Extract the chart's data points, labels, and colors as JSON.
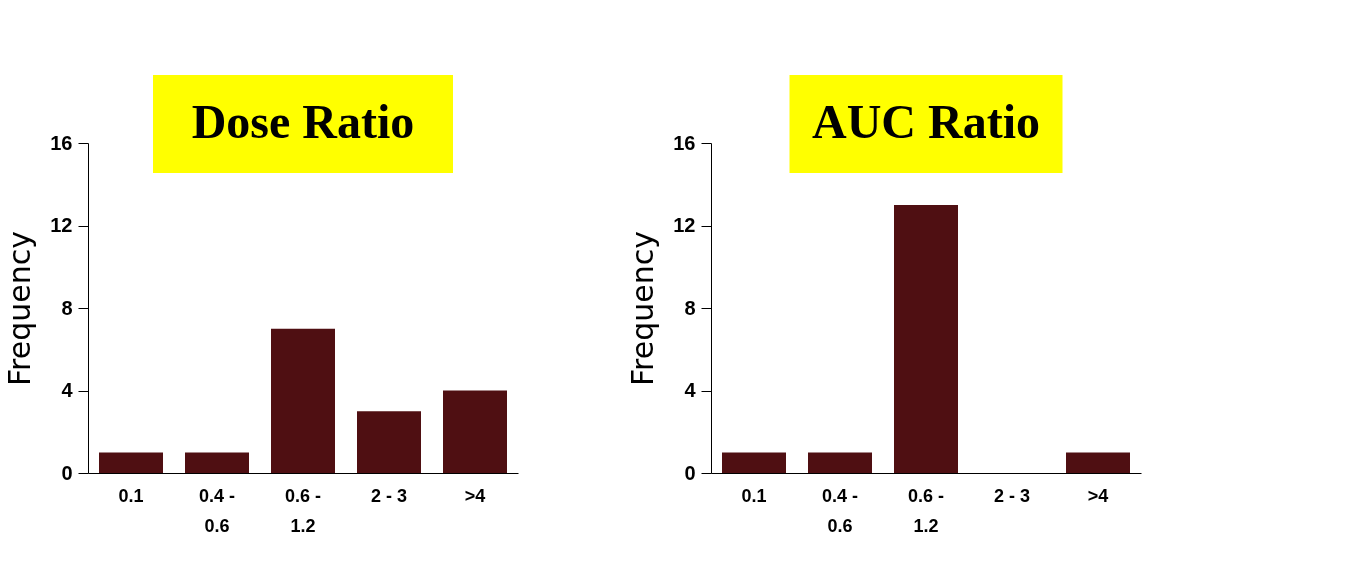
{
  "chart_data": [
    {
      "type": "bar",
      "title": "Dose Ratio",
      "ylabel": "Frequency",
      "categories": [
        "0.1",
        "0.4 - 0.6",
        "0.6 - 1.2",
        "2 - 3",
        ">4"
      ],
      "values": [
        1,
        1,
        7,
        3,
        4
      ],
      "color": "#4f0f12",
      "ylim": [
        0,
        16
      ],
      "yticks": [
        0,
        4,
        8,
        12,
        16
      ],
      "grid": false
    },
    {
      "type": "bar",
      "title": "AUC Ratio",
      "ylabel": "Frequency",
      "categories": [
        "0.1",
        "0.4 - 0.6",
        "0.6 - 1.2",
        "2 - 3",
        ">4"
      ],
      "values": [
        1,
        1,
        13,
        0,
        1
      ],
      "color": "#4f0f12",
      "ylim": [
        0,
        16
      ],
      "yticks": [
        0,
        4,
        8,
        12,
        16
      ],
      "grid": false
    }
  ]
}
